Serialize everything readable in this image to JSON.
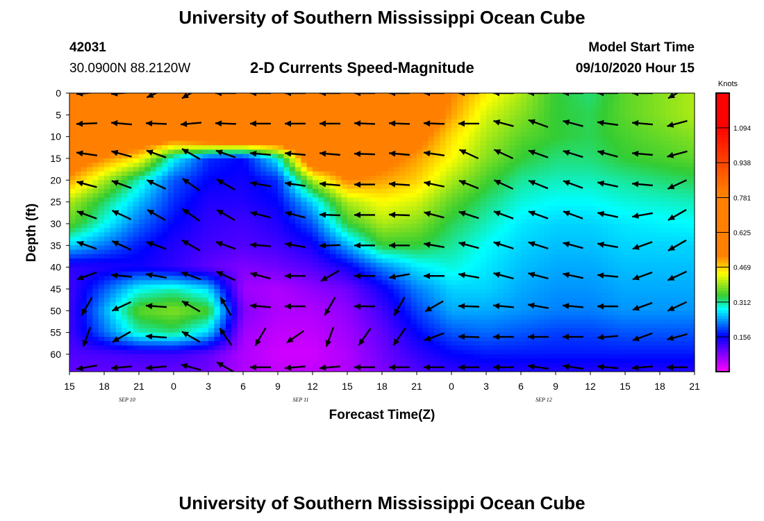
{
  "header": {
    "title": "University of Southern Mississippi Ocean Cube",
    "station_id": "42031",
    "coords": "30.0900N 88.2120W",
    "chart_title": "2-D Currents Speed-Magnitude",
    "model_label": "Model Start Time",
    "model_time": "09/10/2020 Hour 15"
  },
  "footer": {
    "title": "University of Southern Mississippi Ocean Cube"
  },
  "colors": {
    "magenta": "#ff00ff",
    "blue": "#0000ff",
    "cyan": "#00ffff",
    "green": "#33cc33",
    "yellow": "#ffff00",
    "orange": "#ff8000",
    "red": "#ff0000"
  },
  "chart_data": {
    "type": "heatmap",
    "xlabel": "Forecast Time(Z)",
    "ylabel": "Depth (ft)",
    "x_ticks": [
      "15",
      "18",
      "21",
      "0",
      "3",
      "6",
      "9",
      "12",
      "15",
      "18",
      "21",
      "0",
      "3",
      "6",
      "9",
      "12",
      "15",
      "18",
      "21"
    ],
    "day_labels": [
      {
        "label": "SEP 10",
        "tick_index": 2
      },
      {
        "label": "SEP 11",
        "tick_index": 7
      },
      {
        "label": "SEP 12",
        "tick_index": 14
      }
    ],
    "y_ticks": [
      0,
      5,
      10,
      15,
      20,
      25,
      30,
      35,
      40,
      45,
      50,
      55,
      60
    ],
    "ylim": [
      0,
      64
    ],
    "x_range_hours": [
      0,
      54
    ],
    "colorbar": {
      "unit": "Knots",
      "ticks": [
        "1.094",
        "0.938",
        "0.781",
        "0.625",
        "0.469",
        "0.312",
        "0.156"
      ],
      "tick_values": [
        1.094,
        0.938,
        0.781,
        0.625,
        0.469,
        0.312,
        0.156
      ],
      "range": [
        0,
        1.25
      ]
    },
    "speed_grid": {
      "x_hours": [
        0,
        6,
        9,
        12,
        15,
        18,
        21,
        24,
        27,
        30,
        33,
        36,
        39,
        42,
        45,
        48,
        54
      ],
      "depth_ft": [
        0,
        5,
        10,
        15,
        20,
        25,
        30,
        35,
        40,
        45,
        50,
        55,
        60,
        64
      ],
      "values": [
        [
          0.66,
          0.68,
          0.72,
          0.74,
          0.72,
          0.7,
          0.68,
          0.66,
          0.65,
          0.62,
          0.52,
          0.45,
          0.4,
          0.34,
          0.32,
          0.36,
          0.4
        ],
        [
          0.65,
          0.68,
          0.7,
          0.72,
          0.7,
          0.68,
          0.67,
          0.65,
          0.64,
          0.6,
          0.5,
          0.42,
          0.38,
          0.34,
          0.33,
          0.36,
          0.4
        ],
        [
          0.62,
          0.62,
          0.58,
          0.66,
          0.68,
          0.68,
          0.66,
          0.64,
          0.62,
          0.55,
          0.46,
          0.4,
          0.36,
          0.34,
          0.33,
          0.35,
          0.38
        ],
        [
          0.58,
          0.45,
          0.28,
          0.18,
          0.16,
          0.28,
          0.62,
          0.6,
          0.55,
          0.5,
          0.44,
          0.38,
          0.34,
          0.32,
          0.32,
          0.34,
          0.36
        ],
        [
          0.5,
          0.3,
          0.2,
          0.16,
          0.15,
          0.18,
          0.4,
          0.52,
          0.5,
          0.47,
          0.4,
          0.35,
          0.31,
          0.3,
          0.3,
          0.31,
          0.33
        ],
        [
          0.4,
          0.25,
          0.18,
          0.14,
          0.14,
          0.16,
          0.26,
          0.4,
          0.44,
          0.42,
          0.36,
          0.32,
          0.29,
          0.28,
          0.28,
          0.29,
          0.3
        ],
        [
          0.36,
          0.21,
          0.16,
          0.13,
          0.12,
          0.14,
          0.2,
          0.34,
          0.4,
          0.38,
          0.33,
          0.3,
          0.27,
          0.26,
          0.26,
          0.27,
          0.28
        ],
        [
          0.26,
          0.17,
          0.14,
          0.12,
          0.11,
          0.12,
          0.15,
          0.24,
          0.34,
          0.34,
          0.31,
          0.28,
          0.26,
          0.25,
          0.25,
          0.26,
          0.26
        ],
        [
          0.13,
          0.15,
          0.13,
          0.1,
          0.08,
          0.09,
          0.11,
          0.15,
          0.22,
          0.27,
          0.29,
          0.27,
          0.25,
          0.24,
          0.24,
          0.25,
          0.25
        ],
        [
          0.12,
          0.28,
          0.3,
          0.26,
          0.06,
          0.05,
          0.07,
          0.09,
          0.15,
          0.22,
          0.26,
          0.26,
          0.24,
          0.23,
          0.23,
          0.24,
          0.24
        ],
        [
          0.12,
          0.36,
          0.38,
          0.35,
          0.08,
          0.05,
          0.05,
          0.07,
          0.12,
          0.19,
          0.24,
          0.24,
          0.23,
          0.22,
          0.22,
          0.23,
          0.23
        ],
        [
          0.12,
          0.3,
          0.32,
          0.26,
          0.06,
          0.04,
          0.04,
          0.06,
          0.1,
          0.16,
          0.2,
          0.21,
          0.2,
          0.19,
          0.19,
          0.2,
          0.2
        ],
        [
          0.11,
          0.12,
          0.12,
          0.1,
          0.05,
          0.03,
          0.03,
          0.05,
          0.09,
          0.13,
          0.16,
          0.17,
          0.17,
          0.17,
          0.17,
          0.17,
          0.17
        ],
        [
          0.1,
          0.1,
          0.1,
          0.09,
          0.05,
          0.04,
          0.04,
          0.05,
          0.08,
          0.11,
          0.13,
          0.14,
          0.14,
          0.14,
          0.14,
          0.14,
          0.14
        ]
      ]
    },
    "arrow_depths_ft": [
      0,
      7,
      14,
      21,
      28,
      35,
      42,
      49,
      56,
      63
    ],
    "arrow_columns": [
      {
        "hour": 1.5,
        "dirs": [
          185,
          182,
          172,
          165,
          160,
          160,
          200,
          240,
          250,
          190
        ]
      },
      {
        "hour": 4.5,
        "dirs": [
          185,
          175,
          165,
          160,
          155,
          155,
          175,
          205,
          210,
          185
        ]
      },
      {
        "hour": 7.5,
        "dirs": [
          205,
          178,
          160,
          155,
          150,
          160,
          170,
          176,
          176,
          185
        ]
      },
      {
        "hour": 10.5,
        "dirs": [
          210,
          185,
          150,
          145,
          145,
          150,
          160,
          150,
          150,
          165
        ]
      },
      {
        "hour": 13.5,
        "dirs": [
          180,
          178,
          160,
          150,
          150,
          160,
          155,
          120,
          125,
          150
        ]
      },
      {
        "hour": 16.5,
        "dirs": [
          180,
          180,
          175,
          170,
          165,
          175,
          165,
          175,
          240,
          180
        ]
      },
      {
        "hour": 19.5,
        "dirs": [
          180,
          180,
          175,
          172,
          165,
          170,
          180,
          180,
          215,
          185
        ]
      },
      {
        "hour": 22.5,
        "dirs": [
          180,
          180,
          175,
          175,
          178,
          182,
          210,
          240,
          250,
          185
        ]
      },
      {
        "hour": 25.5,
        "dirs": [
          180,
          178,
          178,
          180,
          180,
          180,
          180,
          180,
          235,
          180
        ]
      },
      {
        "hour": 28.5,
        "dirs": [
          180,
          178,
          175,
          176,
          178,
          180,
          190,
          240,
          235,
          180
        ]
      },
      {
        "hour": 31.5,
        "dirs": [
          180,
          178,
          172,
          168,
          165,
          170,
          180,
          210,
          200,
          180
        ]
      },
      {
        "hour": 34.5,
        "dirs": [
          180,
          180,
          155,
          158,
          162,
          165,
          170,
          178,
          178,
          180
        ]
      },
      {
        "hour": 37.5,
        "dirs": [
          180,
          165,
          155,
          155,
          160,
          162,
          165,
          175,
          180,
          180
        ]
      },
      {
        "hour": 40.5,
        "dirs": [
          180,
          160,
          160,
          158,
          160,
          162,
          165,
          170,
          180,
          172
        ]
      },
      {
        "hour": 43.5,
        "dirs": [
          180,
          165,
          163,
          160,
          160,
          165,
          168,
          175,
          180,
          172
        ]
      },
      {
        "hour": 46.5,
        "dirs": [
          180,
          172,
          165,
          168,
          168,
          170,
          175,
          180,
          185,
          175
        ]
      },
      {
        "hour": 49.5,
        "dirs": [
          180,
          175,
          175,
          175,
          190,
          200,
          200,
          200,
          200,
          185
        ]
      },
      {
        "hour": 52.5,
        "dirs": [
          210,
          195,
          195,
          205,
          210,
          210,
          205,
          205,
          195,
          180
        ]
      }
    ]
  }
}
